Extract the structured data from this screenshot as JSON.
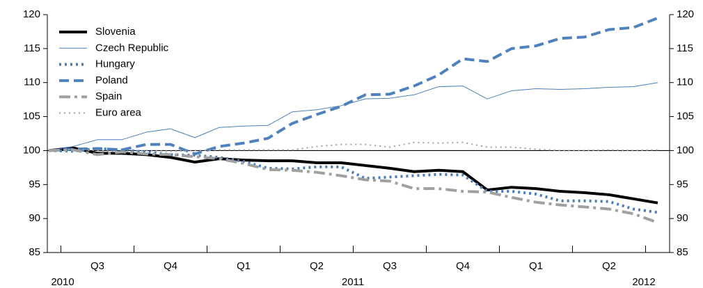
{
  "chart_data": {
    "type": "line",
    "categories": [
      null,
      null,
      null,
      null,
      null,
      null,
      null,
      null,
      null,
      null,
      null,
      null,
      null,
      null,
      null,
      null,
      null,
      null,
      null,
      null,
      null,
      null,
      null,
      null,
      null,
      null
    ],
    "period_labels": [
      "Q3",
      "Q4",
      "Q1",
      "Q2",
      "Q3",
      "Q4",
      "Q1",
      "Q2"
    ],
    "year_labels": [
      "2010",
      "2011",
      "2012"
    ],
    "ylim": [
      85,
      120
    ],
    "yticks": [
      85,
      90,
      95,
      100,
      105,
      110,
      115,
      120
    ],
    "y2lim": [
      85,
      120
    ],
    "y2ticks": [
      85,
      90,
      95,
      100,
      105,
      110,
      115,
      120
    ],
    "hline": 100,
    "legend": "upper left",
    "series": [
      {
        "name": "Slovenia",
        "color": "#000000",
        "style": "thick",
        "values": [
          100,
          100.4,
          99.6,
          99.6,
          99.4,
          99.0,
          98.3,
          98.8,
          98.6,
          98.5,
          98.5,
          98.2,
          98.2,
          97.8,
          97.4,
          96.9,
          97.1,
          96.9,
          94.2,
          94.6,
          94.4,
          94.0,
          93.8,
          93.5,
          92.9,
          92.3
        ]
      },
      {
        "name": "Czech Republic",
        "color": "#4a7ebb",
        "style": "thin",
        "values": [
          100,
          100.6,
          101.6,
          101.6,
          102.7,
          103.2,
          101.9,
          103.4,
          103.6,
          103.7,
          105.7,
          106.0,
          106.6,
          107.6,
          107.7,
          108.2,
          109.4,
          109.5,
          107.6,
          108.8,
          109.1,
          109.0,
          109.1,
          109.3,
          109.4,
          110.0
        ]
      },
      {
        "name": "Hungary",
        "color": "#4a7ebb",
        "style": "dotted",
        "values": [
          100,
          99.9,
          100.3,
          100.1,
          99.8,
          99.4,
          99.3,
          99.0,
          98.4,
          97.4,
          97.3,
          97.6,
          97.6,
          95.9,
          96.1,
          96.3,
          96.5,
          96.4,
          94.0,
          94.0,
          93.6,
          92.6,
          92.6,
          92.5,
          91.4,
          90.9
        ]
      },
      {
        "name": "Poland",
        "color": "#4f81bd",
        "style": "dashed",
        "values": [
          100,
          100.2,
          100.3,
          100.1,
          100.9,
          100.9,
          99.5,
          100.6,
          101.1,
          101.8,
          104.0,
          105.3,
          106.5,
          108.2,
          108.3,
          109.5,
          111.1,
          113.5,
          113.1,
          115.0,
          115.4,
          116.5,
          116.7,
          117.8,
          118.1,
          119.5
        ]
      },
      {
        "name": "Spain",
        "color": "#a0a0a0",
        "style": "dashdot",
        "values": [
          100,
          100.1,
          99.4,
          99.8,
          99.5,
          99.4,
          99.1,
          98.8,
          98.1,
          97.2,
          97.1,
          96.8,
          96.3,
          95.7,
          95.5,
          94.4,
          94.4,
          94.0,
          93.9,
          93.1,
          92.4,
          92.0,
          91.7,
          91.4,
          90.7,
          89.4
        ]
      },
      {
        "name": "Euro area",
        "color": "#a0a0a0",
        "style": "thindotted",
        "values": [
          100,
          100.2,
          100.0,
          99.8,
          100.0,
          99.9,
          100.0,
          100.1,
          100.1,
          100.1,
          100.1,
          100.6,
          100.9,
          100.9,
          100.5,
          101.2,
          101.1,
          101.2,
          100.5,
          100.5,
          100.2,
          100.0,
          100.0,
          100.1,
          100.0,
          100.1
        ]
      }
    ]
  }
}
